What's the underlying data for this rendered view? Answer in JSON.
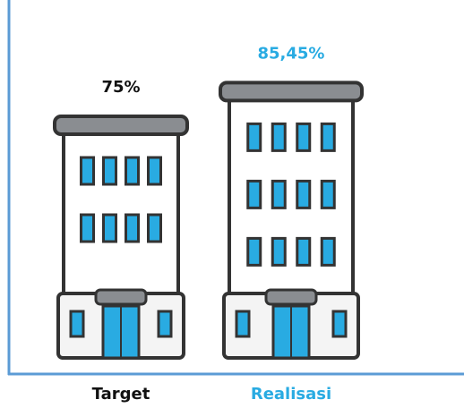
{
  "chart_data": {
    "type": "pictograph",
    "categories": [
      "Target",
      "Realisasi"
    ],
    "values": [
      75,
      85.45
    ],
    "value_labels": [
      "75%",
      "85,45%"
    ],
    "colors": [
      "#111111",
      "#29abe2"
    ]
  }
}
